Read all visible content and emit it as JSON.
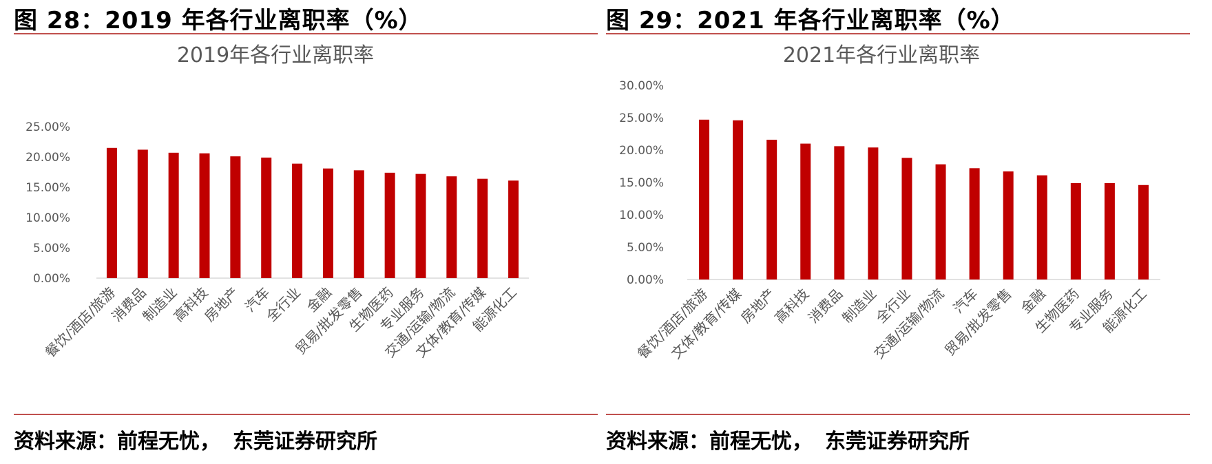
{
  "panels": [
    {
      "figure_title": "图 28：2019 年各行业离职率（%）",
      "source_label": "资料来源：前程无忧，",
      "source_org": "东莞证券研究所",
      "chart_data": {
        "type": "bar",
        "title": "2019年各行业离职率",
        "categories": [
          "餐饮/酒店/旅游",
          "消费品",
          "制造业",
          "高科技",
          "房地产",
          "汽车",
          "全行业",
          "金融",
          "贸易/批发零售",
          "生物医药",
          "专业服务",
          "交通/运输/物流",
          "文体/教育/传媒",
          "能源化工"
        ],
        "values": [
          21.5,
          21.2,
          20.7,
          20.6,
          20.1,
          19.9,
          18.9,
          18.1,
          17.8,
          17.4,
          17.2,
          16.8,
          16.4,
          16.1
        ],
        "yticks": [
          "0.00%",
          "5.00%",
          "10.00%",
          "15.00%",
          "20.00%",
          "25.00%"
        ],
        "ylim": [
          0,
          25
        ],
        "bar_color": "#c00000"
      }
    },
    {
      "figure_title": "图 29：2021 年各行业离职率（%）",
      "source_label": "资料来源：前程无忧，",
      "source_org": "东莞证券研究所",
      "chart_data": {
        "type": "bar",
        "title": "2021年各行业离职率",
        "categories": [
          "餐饮/酒店/旅游",
          "文体/教育/传媒",
          "房地产",
          "高科技",
          "消费品",
          "制造业",
          "全行业",
          "交通/运输/物流",
          "汽车",
          "贸易/批发零售",
          "金融",
          "生物医药",
          "专业服务",
          "能源化工"
        ],
        "values": [
          24.7,
          24.6,
          21.6,
          21.0,
          20.6,
          20.4,
          18.8,
          17.8,
          17.2,
          16.7,
          16.1,
          14.9,
          14.9,
          14.6
        ],
        "yticks": [
          "0.00%",
          "5.00%",
          "10.00%",
          "15.00%",
          "20.00%",
          "25.00%",
          "30.00%"
        ],
        "ylim": [
          0,
          30
        ],
        "bar_color": "#c00000"
      }
    }
  ]
}
